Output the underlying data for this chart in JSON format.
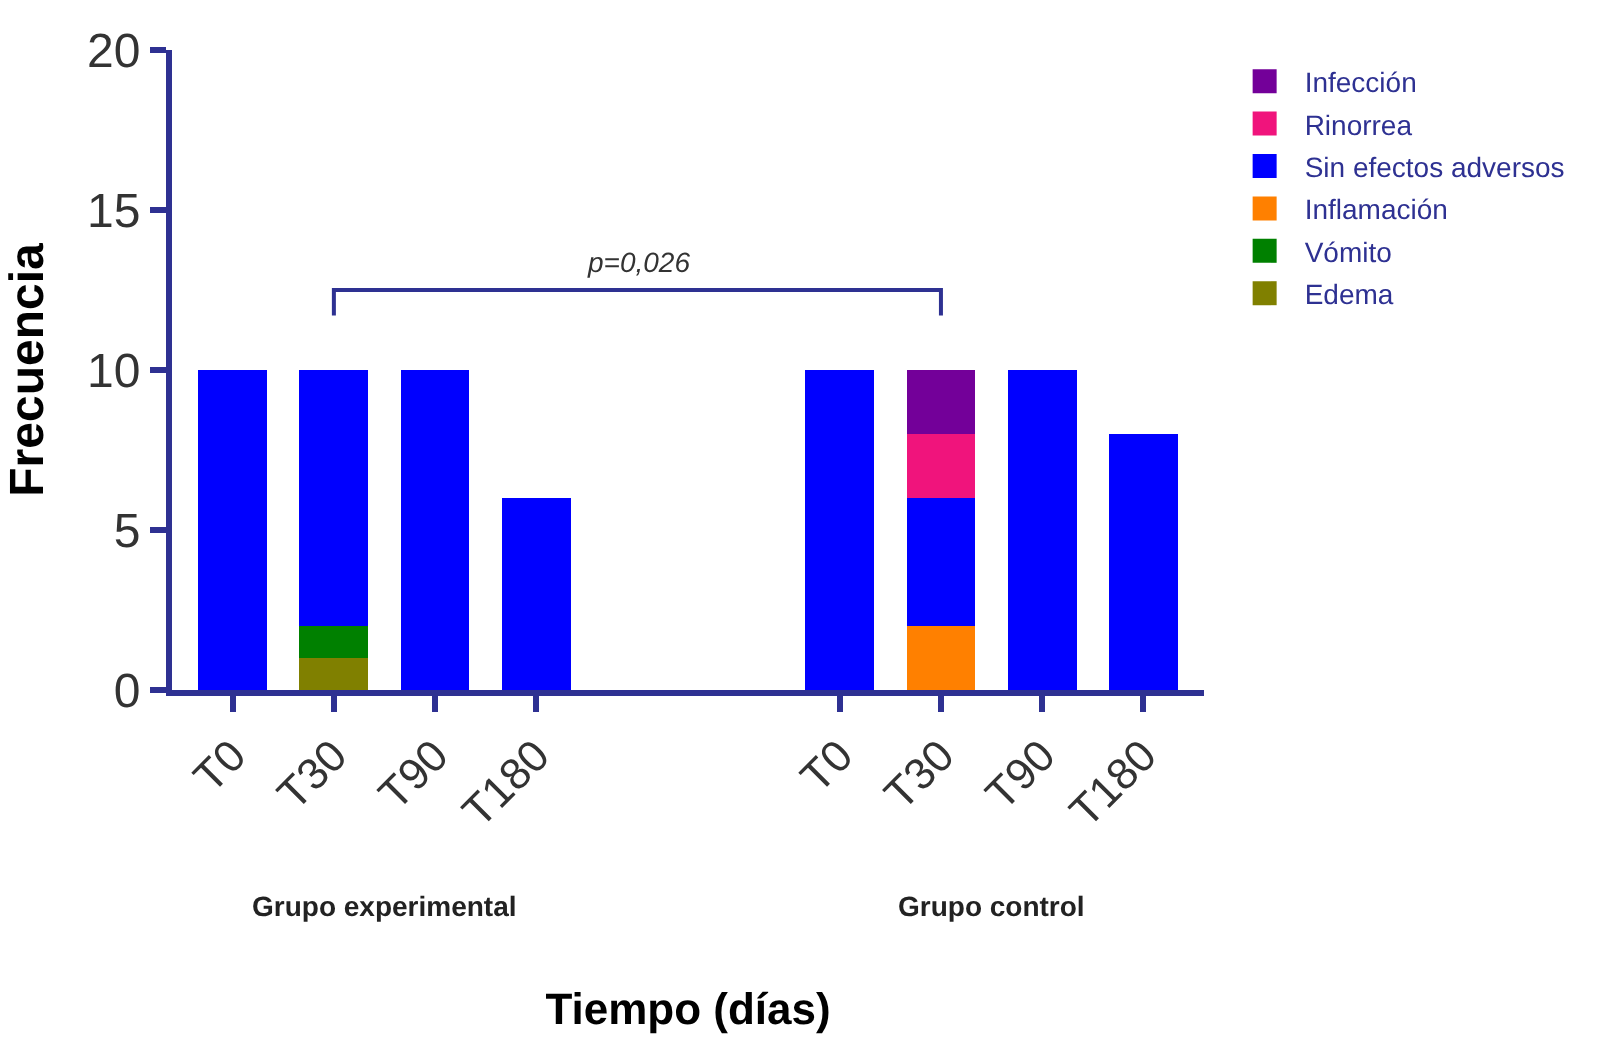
{
  "chart_data": {
    "type": "bar",
    "stacked": true,
    "xlabel": "Tiempo (días)",
    "ylabel": "Frecuencia",
    "categories": [
      "T0",
      "T30",
      "T90",
      "T180",
      null,
      null,
      "T0",
      "T30",
      "T90",
      "T180"
    ],
    "series": [
      {
        "name": "Edema",
        "color": "#808000",
        "values": [
          null,
          1,
          null,
          null,
          null,
          null,
          null,
          null,
          null,
          null
        ]
      },
      {
        "name": "Vómito",
        "color": "#008000",
        "values": [
          null,
          1,
          null,
          null,
          null,
          null,
          null,
          null,
          null,
          null
        ]
      },
      {
        "name": "Inflamación",
        "color": "#ff8000",
        "values": [
          null,
          null,
          null,
          null,
          null,
          null,
          null,
          2,
          null,
          null
        ]
      },
      {
        "name": "Sin efectos adversos",
        "color": "#0000ff",
        "values": [
          10,
          8,
          10,
          6,
          null,
          null,
          10,
          4,
          10,
          8
        ]
      },
      {
        "name": "Rinorrea",
        "color": "#f0147c",
        "values": [
          null,
          null,
          null,
          null,
          null,
          null,
          null,
          2,
          null,
          null
        ]
      },
      {
        "name": "Infección",
        "color": "#730099",
        "values": [
          null,
          null,
          null,
          null,
          null,
          null,
          null,
          2,
          null,
          null
        ]
      }
    ],
    "ylim": [
      0,
      20
    ],
    "yticks": [
      0,
      5,
      10,
      15,
      20
    ],
    "legend": "top right",
    "annotations": [
      "p=0,026",
      "Grupo experimental",
      "Grupo control"
    ]
  }
}
